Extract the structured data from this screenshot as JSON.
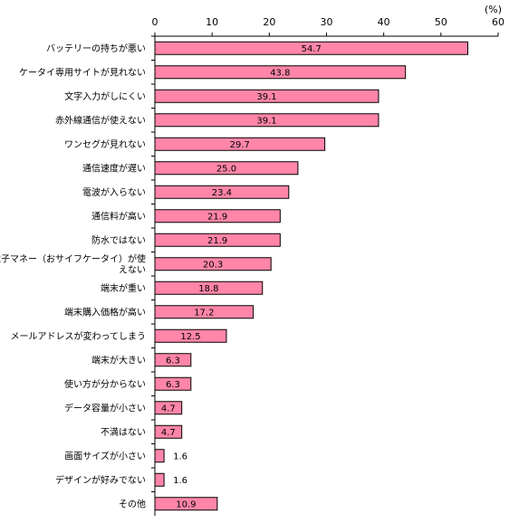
{
  "chart_data": {
    "type": "bar",
    "orientation": "horizontal",
    "unit_label": "(%)",
    "xlim": [
      0,
      60
    ],
    "x_ticks": [
      0,
      10,
      20,
      30,
      40,
      50,
      60
    ],
    "tick_labels": [
      "0",
      "10",
      "20",
      "30",
      "40",
      "50",
      "60"
    ],
    "grid": false,
    "bar_color": "#ff85a9",
    "bar_edge_color": "#000000",
    "categories": [
      [
        "バッテリーの持ちが悪い"
      ],
      [
        "ケータイ専用サイトが見れない"
      ],
      [
        "文字入力がしにくい"
      ],
      [
        "赤外線通信が使えない"
      ],
      [
        "ワンセグが見れない"
      ],
      [
        "通信速度が遅い"
      ],
      [
        "電波が入らない"
      ],
      [
        "通信料が高い"
      ],
      [
        "防水ではない"
      ],
      [
        "電子マネー（おサイフケータイ）が使",
        "えない"
      ],
      [
        "端末が重い"
      ],
      [
        "端末購入価格が高い"
      ],
      [
        "メールアドレスが変わってしまう"
      ],
      [
        "端末が大きい"
      ],
      [
        "使い方が分からない"
      ],
      [
        "データ容量が小さい"
      ],
      [
        "不満はない"
      ],
      [
        "画面サイズが小さい"
      ],
      [
        "デザインが好みでない"
      ],
      [
        "その他"
      ]
    ],
    "values": [
      54.7,
      43.8,
      39.1,
      39.1,
      29.7,
      25.0,
      23.4,
      21.9,
      21.9,
      20.3,
      18.8,
      17.2,
      12.5,
      6.3,
      6.3,
      4.7,
      4.7,
      1.6,
      1.6,
      10.9
    ],
    "value_labels": [
      "54.7",
      "43.8",
      "39.1",
      "39.1",
      "29.7",
      "25.0",
      "23.4",
      "21.9",
      "21.9",
      "20.3",
      "18.8",
      "17.2",
      "12.5",
      "6.3",
      "6.3",
      "4.7",
      "4.7",
      "1.6",
      "1.6",
      "10.9"
    ]
  }
}
